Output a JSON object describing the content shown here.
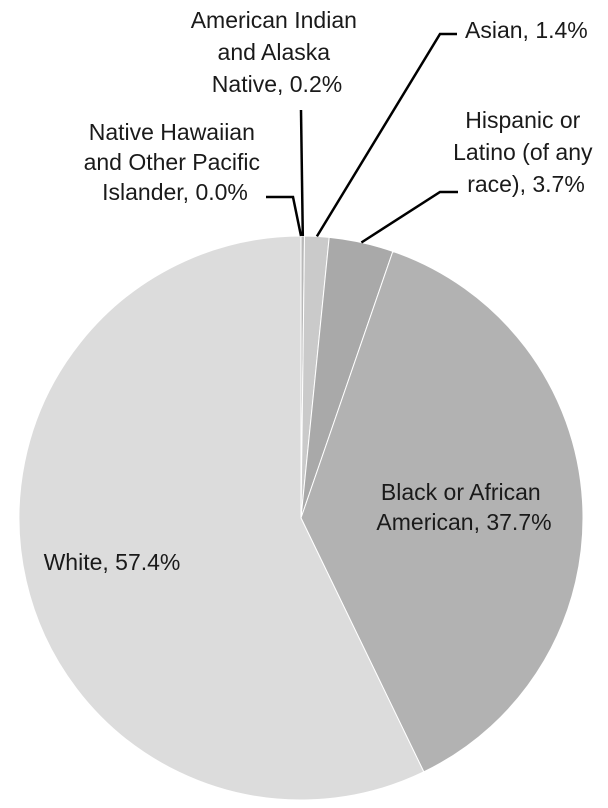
{
  "chart_data": {
    "type": "pie",
    "title": "",
    "slices": [
      {
        "name": "Native Hawaiian and Other Pacific Islander",
        "value": 0.0,
        "label_lines": [
          "Native Hawaiian",
          "and Other Pacific",
          "Islander, 0.0%"
        ],
        "color": "#c4c4c4"
      },
      {
        "name": "American Indian and Alaska Native",
        "value": 0.2,
        "label_lines": [
          "American Indian",
          "and Alaska",
          "Native, 0.2%"
        ],
        "color": "#b8b8b8"
      },
      {
        "name": "Asian",
        "value": 1.4,
        "label_lines": [
          "Asian, 1.4%"
        ],
        "color": "#cacaca"
      },
      {
        "name": "Hispanic or Latino (of any race)",
        "value": 3.7,
        "label_lines": [
          "Hispanic or",
          "Latino (of any",
          "race), 3.7%"
        ],
        "color": "#a9a9a9"
      },
      {
        "name": "Black or African American",
        "value": 37.7,
        "label_lines": [
          "Black or African",
          "American, 37.7%"
        ],
        "color": "#b2b2b2"
      },
      {
        "name": "White",
        "value": 57.4,
        "label_lines": [
          "White, 57.4%"
        ],
        "color": "#dcdcdc"
      }
    ],
    "start": "12 o'clock",
    "direction": "clockwise",
    "legend": "none"
  }
}
